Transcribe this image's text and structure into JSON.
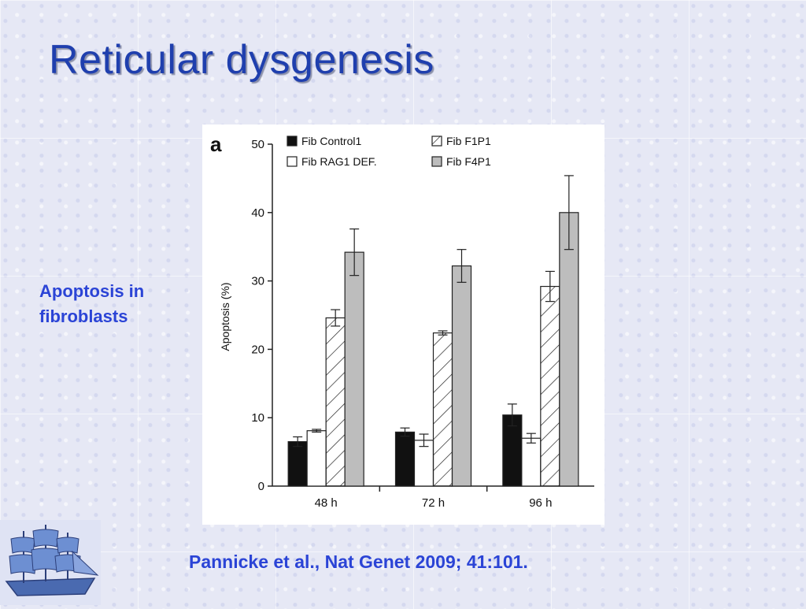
{
  "slide": {
    "title": "Reticular dysgenesis",
    "side_label_line1": "Apoptosis in",
    "side_label_line2": "fibroblasts",
    "citation": "Pannicke et al., Nat Genet 2009; 41:101.",
    "logo_icon": "sailing-ship-icon"
  },
  "chart_data": {
    "type": "bar",
    "panel_label": "a",
    "categories": [
      "48 h",
      "72 h",
      "96 h"
    ],
    "ylabel": "Apoptosis (%)",
    "ylim": [
      0,
      50
    ],
    "yticks": [
      0,
      10,
      20,
      30,
      40,
      50
    ],
    "legend_placement": "top",
    "grid": false,
    "series": [
      {
        "name": "Fib Control1",
        "style": "solid-black",
        "color": "#111111",
        "values": [
          6.5,
          7.9,
          10.4
        ],
        "errors": [
          0.7,
          0.6,
          1.6
        ]
      },
      {
        "name": "Fib RAG1 DEF.",
        "style": "open-white",
        "color": "#ffffff",
        "values": [
          8.1,
          6.7,
          7.0
        ],
        "errors": [
          0.2,
          0.9,
          0.7
        ]
      },
      {
        "name": "Fib F1P1",
        "style": "hatched",
        "color": "#ffffff",
        "values": [
          24.6,
          22.4,
          29.2
        ],
        "errors": [
          1.2,
          0.3,
          2.2
        ]
      },
      {
        "name": "Fib F4P1",
        "style": "solid-gray",
        "color": "#bdbdbd",
        "values": [
          34.2,
          32.2,
          40.0
        ],
        "errors": [
          3.4,
          2.4,
          5.4
        ]
      }
    ]
  }
}
